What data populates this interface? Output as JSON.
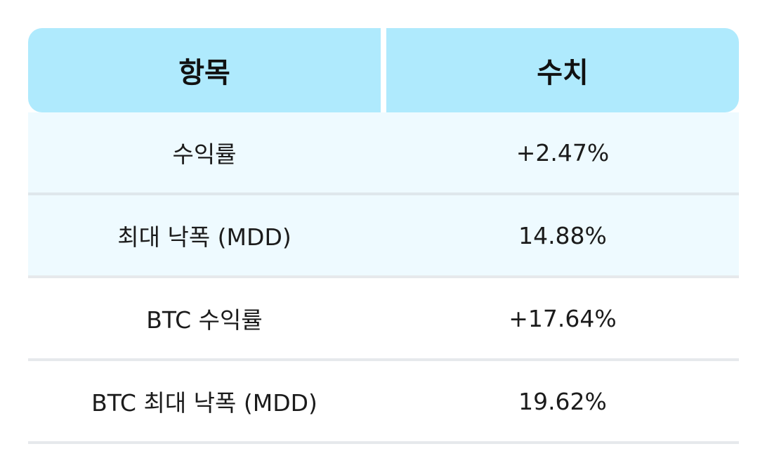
{
  "header": {
    "item_label": "항목",
    "value_label": "수치"
  },
  "rows": [
    {
      "label": "수익률",
      "value": "+2.47%"
    },
    {
      "label": "최대 낙폭 (MDD)",
      "value": "14.88%"
    },
    {
      "label": "BTC 수익률",
      "value": "+17.64%"
    },
    {
      "label": "BTC 최대 낙폭 (MDD)",
      "value": "19.62%"
    }
  ],
  "colors": {
    "header_bg": "#afeafd",
    "tinted_row_bg": "#eefaff",
    "divider": "#e6e9ec"
  }
}
